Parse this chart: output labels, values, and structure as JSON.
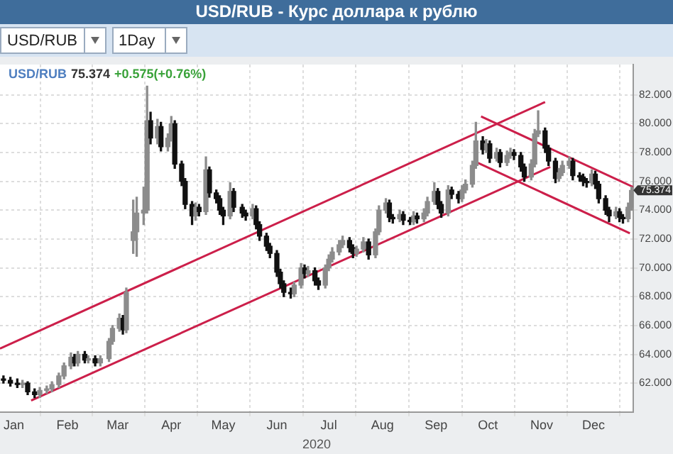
{
  "chart_data": {
    "type": "candlestick",
    "title": "USD/RUB - Курс доллара к рублю",
    "xlabel": "2020",
    "grid": true,
    "colors": [
      "#111111",
      "#111111",
      "#111111",
      "#8c8c8c",
      "#111111",
      "#111111",
      "#8c8c8c",
      "#8c8c8c",
      "#8c8c8c",
      "#8c8c8c",
      "#8c8c8c",
      "#8c8c8c",
      "#111111",
      "#8c8c8c",
      "#111111",
      "#8c8c8c",
      "#111111",
      "#8c8c8c",
      "#8c8c8c",
      "#8c8c8c",
      "#8c8c8c",
      "#111111",
      "#8c8c8c",
      "#8c8c8c",
      "#8c8c8c",
      "#8c8c8c",
      "#8c8c8c",
      "#111111",
      "#8c8c8c",
      "#111111",
      "#8c8c8c",
      "#8c8c8c",
      "#111111",
      "#111111",
      "#111111",
      "#111111",
      "#8c8c8c",
      "#111111",
      "#8c8c8c",
      "#111111",
      "#111111",
      "#111111",
      "#111111",
      "#8c8c8c",
      "#111111",
      "#111111",
      "#111111",
      "#8c8c8c",
      "#111111",
      "#111111",
      "#111111",
      "#111111",
      "#111111",
      "#111111",
      "#111111",
      "#111111",
      "#8c8c8c",
      "#8c8c8c",
      "#111111",
      "#8c8c8c",
      "#111111",
      "#111111",
      "#8c8c8c",
      "#8c8c8c",
      "#8c8c8c",
      "#8c8c8c",
      "#8c8c8c",
      "#111111",
      "#111111",
      "#8c8c8c",
      "#8c8c8c",
      "#111111",
      "#8c8c8c",
      "#8c8c8c",
      "#8c8c8c",
      "#111111",
      "#111111",
      "#8c8c8c",
      "#111111",
      "#111111",
      "#8c8c8c",
      "#111111",
      "#8c8c8c",
      "#8c8c8c",
      "#8c8c8c",
      "#111111",
      "#111111",
      "#8c8c8c",
      "#111111",
      "#111111",
      "#8c8c8c",
      "#8c8c8c",
      "#8c8c8c",
      "#8c8c8c",
      "#111111",
      "#8c8c8c",
      "#111111",
      "#8c8c8c",
      "#111111",
      "#8c8c8c",
      "#8c8c8c",
      "#111111",
      "#111111",
      "#111111",
      "#8c8c8c",
      "#8c8c8c",
      "#8c8c8c",
      "#111111",
      "#111111",
      "#111111",
      "#8c8c8c",
      "#8c8c8c",
      "#8c8c8c",
      "#111111",
      "#111111",
      "#111111",
      "#111111",
      "#8c8c8c",
      "#111111",
      "#111111",
      "#111111",
      "#111111",
      "#8c8c8c",
      "#111111",
      "#111111",
      "#8c8c8c",
      "#8c8c8c"
    ],
    "legend": false,
    "annotations": [
      "USD/RUB",
      "1Day",
      "USD/RUB",
      "75.374",
      "+0.575(+0.76%)",
      {
        "text": "75.374",
        "x": "2020-12-24",
        "y": 75.374
      }
    ],
    "xlim": [
      "2019-12-24",
      "2020-12-24"
    ],
    "xticks": [
      {
        "value": "2020-01-01",
        "label": "Jan"
      },
      {
        "value": "2020-02-01",
        "label": "Feb"
      },
      {
        "value": "2020-03-01",
        "label": "Mar"
      },
      {
        "value": "2020-04-01",
        "label": "Apr"
      },
      {
        "value": "2020-05-01",
        "label": "May"
      },
      {
        "value": "2020-06-01",
        "label": "Jun"
      },
      {
        "value": "2020-07-01",
        "label": "Jul"
      },
      {
        "value": "2020-08-01",
        "label": "Aug"
      },
      {
        "value": "2020-09-01",
        "label": "Sep"
      },
      {
        "value": "2020-10-01",
        "label": "Oct"
      },
      {
        "value": "2020-11-01",
        "label": "Nov"
      },
      {
        "value": "2020-12-01",
        "label": "Dec"
      }
    ],
    "ylim": [
      60.0,
      84.1
    ],
    "yticks": [
      {
        "value": 62,
        "label": "62.000"
      },
      {
        "value": 64,
        "label": "64.000"
      },
      {
        "value": 66,
        "label": "66.000"
      },
      {
        "value": 68,
        "label": "68.000"
      },
      {
        "value": 70,
        "label": "70.000"
      },
      {
        "value": 72,
        "label": "72.000"
      },
      {
        "value": 74,
        "label": "74.000"
      },
      {
        "value": 76,
        "label": "76.000"
      },
      {
        "value": 78,
        "label": "78.000"
      },
      {
        "value": 80,
        "label": "80.000"
      },
      {
        "value": 82,
        "label": "82.000"
      }
    ],
    "x": [
      "2019-12-26",
      "2019-12-30",
      "2020-01-03",
      "2020-01-06",
      "2020-01-09",
      "2020-01-13",
      "2020-01-16",
      "2020-01-20",
      "2020-01-23",
      "2020-01-27",
      "2020-01-30",
      "2020-02-03",
      "2020-02-05",
      "2020-02-07",
      "2020-02-11",
      "2020-02-13",
      "2020-02-17",
      "2020-02-20",
      "2020-02-25",
      "2020-02-27",
      "2020-03-02",
      "2020-03-04",
      "2020-03-06",
      "2020-03-10",
      "2020-03-12",
      "2020-03-16",
      "2020-03-18",
      "2020-03-20",
      "2020-03-24",
      "2020-03-26",
      "2020-03-30",
      "2020-04-01",
      "2020-04-03",
      "2020-04-07",
      "2020-04-09",
      "2020-04-13",
      "2020-04-15",
      "2020-04-17",
      "2020-04-21",
      "2020-04-23",
      "2020-04-27",
      "2020-04-29",
      "2020-05-01",
      "2020-05-05",
      "2020-05-07",
      "2020-05-12",
      "2020-05-14",
      "2020-05-18",
      "2020-05-20",
      "2020-05-22",
      "2020-05-26",
      "2020-05-28",
      "2020-06-01",
      "2020-06-03",
      "2020-06-05",
      "2020-06-09",
      "2020-06-11",
      "2020-06-15",
      "2020-06-17",
      "2020-06-19",
      "2020-06-23",
      "2020-06-25",
      "2020-06-29",
      "2020-07-01",
      "2020-07-03",
      "2020-07-07",
      "2020-07-09",
      "2020-07-13",
      "2020-07-15",
      "2020-07-17",
      "2020-07-21",
      "2020-07-24",
      "2020-07-28",
      "2020-07-30",
      "2020-08-03",
      "2020-08-05",
      "2020-08-07",
      "2020-08-11",
      "2020-08-13",
      "2020-08-17",
      "2020-08-19",
      "2020-08-21",
      "2020-08-25",
      "2020-08-27",
      "2020-08-31",
      "2020-09-02",
      "2020-09-04",
      "2020-09-08",
      "2020-09-10",
      "2020-09-14",
      "2020-09-16",
      "2020-09-18",
      "2020-09-22",
      "2020-09-24",
      "2020-09-28",
      "2020-09-30",
      "2020-10-02",
      "2020-10-06",
      "2020-10-08",
      "2020-10-12",
      "2020-10-14",
      "2020-10-16",
      "2020-10-20",
      "2020-10-22",
      "2020-10-26",
      "2020-10-28",
      "2020-10-30",
      "2020-11-03",
      "2020-11-05",
      "2020-11-09",
      "2020-11-11",
      "2020-11-13",
      "2020-11-17",
      "2020-11-19",
      "2020-11-23",
      "2020-11-25",
      "2020-11-27",
      "2020-11-30",
      "2020-12-02",
      "2020-12-04",
      "2020-12-08",
      "2020-12-10",
      "2020-12-14",
      "2020-12-16",
      "2020-12-18",
      "2020-12-21",
      "2020-12-23"
    ],
    "ohlc": [
      [
        62.3,
        62.5,
        62.0,
        62.2
      ],
      [
        62.2,
        62.4,
        61.8,
        62.0
      ],
      [
        62.0,
        62.3,
        61.7,
        61.9
      ],
      [
        61.9,
        62.2,
        61.7,
        62.0
      ],
      [
        62.0,
        62.1,
        61.2,
        61.4
      ],
      [
        61.4,
        61.6,
        61.0,
        61.2
      ],
      [
        61.2,
        61.7,
        61.0,
        61.5
      ],
      [
        61.5,
        61.8,
        61.3,
        61.6
      ],
      [
        61.6,
        62.1,
        61.4,
        61.9
      ],
      [
        61.9,
        62.7,
        61.7,
        62.5
      ],
      [
        62.5,
        63.4,
        62.3,
        63.2
      ],
      [
        63.2,
        64.1,
        63.0,
        63.8
      ],
      [
        63.8,
        64.0,
        63.2,
        63.4
      ],
      [
        63.4,
        64.2,
        63.2,
        64.0
      ],
      [
        64.0,
        64.2,
        63.4,
        63.6
      ],
      [
        63.6,
        63.9,
        63.4,
        63.7
      ],
      [
        63.7,
        63.9,
        63.2,
        63.4
      ],
      [
        63.4,
        63.9,
        63.2,
        63.7
      ],
      [
        63.7,
        65.1,
        63.5,
        64.9
      ],
      [
        64.9,
        66.0,
        64.7,
        65.8
      ],
      [
        65.8,
        66.8,
        65.6,
        66.5
      ],
      [
        66.5,
        66.7,
        65.4,
        65.7
      ],
      [
        65.7,
        68.6,
        65.5,
        68.3
      ],
      [
        71.9,
        74.7,
        71.0,
        72.5
      ],
      [
        72.5,
        74.9,
        70.8,
        73.8
      ],
      [
        73.8,
        75.6,
        73.0,
        74.0
      ],
      [
        74.0,
        82.6,
        73.8,
        80.2
      ],
      [
        80.2,
        80.8,
        78.6,
        79.0
      ],
      [
        79.0,
        80.3,
        78.6,
        79.8
      ],
      [
        79.8,
        80.1,
        78.1,
        78.4
      ],
      [
        78.4,
        79.3,
        78.1,
        79.0
      ],
      [
        79.0,
        80.5,
        78.8,
        80.0
      ],
      [
        80.0,
        80.2,
        76.9,
        77.2
      ],
      [
        77.2,
        77.4,
        75.7,
        76.0
      ],
      [
        76.0,
        76.2,
        74.1,
        74.4
      ],
      [
        74.4,
        74.6,
        73.0,
        73.6
      ],
      [
        73.6,
        74.5,
        73.3,
        74.2
      ],
      [
        74.2,
        74.4,
        73.6,
        73.9
      ],
      [
        73.9,
        77.7,
        73.7,
        76.8
      ],
      [
        76.8,
        77.0,
        74.9,
        75.2
      ],
      [
        75.2,
        75.4,
        74.5,
        74.8
      ],
      [
        74.8,
        75.0,
        73.7,
        74.0
      ],
      [
        74.0,
        74.2,
        73.0,
        73.6
      ],
      [
        73.6,
        75.9,
        73.4,
        75.3
      ],
      [
        75.3,
        75.5,
        73.9,
        74.2
      ],
      [
        74.2,
        74.4,
        73.5,
        73.8
      ],
      [
        73.8,
        74.0,
        73.3,
        73.6
      ],
      [
        73.6,
        74.4,
        73.4,
        74.1
      ],
      [
        74.1,
        74.3,
        72.7,
        73.0
      ],
      [
        73.0,
        73.2,
        71.9,
        72.2
      ],
      [
        72.2,
        72.4,
        71.2,
        71.5
      ],
      [
        71.5,
        71.7,
        70.7,
        71.0
      ],
      [
        71.0,
        71.2,
        69.4,
        69.7
      ],
      [
        69.7,
        69.9,
        68.6,
        68.9
      ],
      [
        68.9,
        69.1,
        68.0,
        68.3
      ],
      [
        68.3,
        68.6,
        67.9,
        68.2
      ],
      [
        68.2,
        69.0,
        68.0,
        68.8
      ],
      [
        68.8,
        70.3,
        68.6,
        70.0
      ],
      [
        70.0,
        70.2,
        69.3,
        69.6
      ],
      [
        69.6,
        70.1,
        69.4,
        69.8
      ],
      [
        69.8,
        70.0,
        68.8,
        69.1
      ],
      [
        69.1,
        69.3,
        68.5,
        68.8
      ],
      [
        68.8,
        70.2,
        68.6,
        70.0
      ],
      [
        70.0,
        70.9,
        69.8,
        70.6
      ],
      [
        70.6,
        71.4,
        70.4,
        71.1
      ],
      [
        71.1,
        71.9,
        70.9,
        71.6
      ],
      [
        71.6,
        72.2,
        71.4,
        71.9
      ],
      [
        71.9,
        72.1,
        71.1,
        71.4
      ],
      [
        71.4,
        71.6,
        70.7,
        71.0
      ],
      [
        71.0,
        71.5,
        70.8,
        71.3
      ],
      [
        71.3,
        72.1,
        71.1,
        71.8
      ],
      [
        71.8,
        72.0,
        70.6,
        70.9
      ],
      [
        70.9,
        72.7,
        70.7,
        72.5
      ],
      [
        72.5,
        74.3,
        72.3,
        74.0
      ],
      [
        74.0,
        74.8,
        73.8,
        74.5
      ],
      [
        74.5,
        74.7,
        73.2,
        73.5
      ],
      [
        73.5,
        73.7,
        73.1,
        73.4
      ],
      [
        73.4,
        74.0,
        73.2,
        73.7
      ],
      [
        73.7,
        73.9,
        73.0,
        73.3
      ],
      [
        73.3,
        73.5,
        73.0,
        73.2
      ],
      [
        73.2,
        73.9,
        73.0,
        73.6
      ],
      [
        73.6,
        73.8,
        73.1,
        73.4
      ],
      [
        73.4,
        74.1,
        73.2,
        73.8
      ],
      [
        73.8,
        74.9,
        73.6,
        74.6
      ],
      [
        74.6,
        75.9,
        74.4,
        75.3
      ],
      [
        75.3,
        75.5,
        74.1,
        74.4
      ],
      [
        74.4,
        74.6,
        73.5,
        73.8
      ],
      [
        73.8,
        75.7,
        73.6,
        75.4
      ],
      [
        75.4,
        75.6,
        74.8,
        75.1
      ],
      [
        75.1,
        75.3,
        74.5,
        74.8
      ],
      [
        74.8,
        75.7,
        74.6,
        75.4
      ],
      [
        75.4,
        76.1,
        75.2,
        75.8
      ],
      [
        75.8,
        77.4,
        75.6,
        77.1
      ],
      [
        77.1,
        80.1,
        76.9,
        78.8
      ],
      [
        78.8,
        79.1,
        77.9,
        78.2
      ],
      [
        78.2,
        78.9,
        78.0,
        78.6
      ],
      [
        78.6,
        78.8,
        77.3,
        77.6
      ],
      [
        77.6,
        78.3,
        77.4,
        78.0
      ],
      [
        78.0,
        78.2,
        77.0,
        77.3
      ],
      [
        77.3,
        78.1,
        77.1,
        77.8
      ],
      [
        77.8,
        78.3,
        77.6,
        78.0
      ],
      [
        78.0,
        78.2,
        77.5,
        77.8
      ],
      [
        77.8,
        78.0,
        76.7,
        77.0
      ],
      [
        77.0,
        77.2,
        76.0,
        76.3
      ],
      [
        76.3,
        77.5,
        76.1,
        77.2
      ],
      [
        77.2,
        79.6,
        77.0,
        79.3
      ],
      [
        79.3,
        80.9,
        79.1,
        79.5
      ],
      [
        79.5,
        79.7,
        78.0,
        78.3
      ],
      [
        78.3,
        78.5,
        77.1,
        77.4
      ],
      [
        77.4,
        77.6,
        75.9,
        76.2
      ],
      [
        76.2,
        76.9,
        76.0,
        76.6
      ],
      [
        76.6,
        77.4,
        76.4,
        77.1
      ],
      [
        77.1,
        77.7,
        76.9,
        77.4
      ],
      [
        77.4,
        77.6,
        76.1,
        76.4
      ],
      [
        76.4,
        76.6,
        76.0,
        76.3
      ],
      [
        76.3,
        76.5,
        75.7,
        76.0
      ],
      [
        76.0,
        76.2,
        75.6,
        75.9
      ],
      [
        75.9,
        76.8,
        75.7,
        76.5
      ],
      [
        76.5,
        76.7,
        75.5,
        75.8
      ],
      [
        75.8,
        76.0,
        74.5,
        74.8
      ],
      [
        74.8,
        75.0,
        73.7,
        74.0
      ],
      [
        74.0,
        74.2,
        73.2,
        73.6
      ],
      [
        73.6,
        74.2,
        73.4,
        73.9
      ],
      [
        73.9,
        74.1,
        73.2,
        73.5
      ],
      [
        73.5,
        73.7,
        73.1,
        73.4
      ],
      [
        73.4,
        74.5,
        73.2,
        74.2
      ],
      [
        74.2,
        75.6,
        74.0,
        75.374
      ]
    ],
    "series": [
      {
        "type": "line",
        "color": "#cc1f4a",
        "x": [
          "2019-12-24",
          "2020-11-03"
        ],
        "values": [
          64.4,
          81.5
        ]
      },
      {
        "type": "line",
        "color": "#cc1f4a",
        "x": [
          "2020-01-11",
          "2020-11-06"
        ],
        "values": [
          60.8,
          77.0
        ]
      },
      {
        "type": "line",
        "color": "#cc1f4a",
        "x": [
          "2020-09-27",
          "2020-12-24"
        ],
        "values": [
          80.5,
          75.6
        ]
      },
      {
        "type": "line",
        "color": "#cc1f4a",
        "x": [
          "2020-09-23",
          "2020-12-22"
        ],
        "values": [
          77.4,
          72.4
        ]
      }
    ]
  }
}
